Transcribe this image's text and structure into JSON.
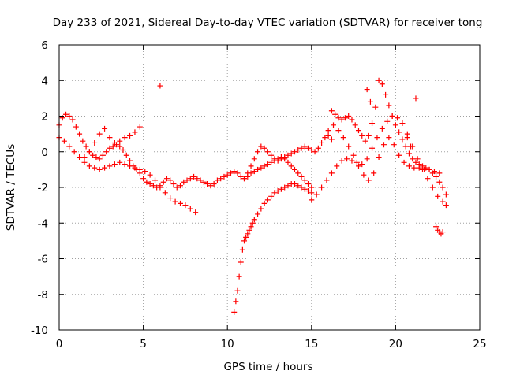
{
  "chart_data": {
    "type": "scatter",
    "title": "Day 233 of 2021, Sidereal Day-to-day VTEC variation (SDTVAR) for receiver tong",
    "xlabel": "GPS time / hours",
    "ylabel": "SDTVAR / TECUs",
    "xlim": [
      0,
      25
    ],
    "ylim": [
      -10,
      6
    ],
    "xticks": [
      0,
      5,
      10,
      15,
      20,
      25
    ],
    "yticks": [
      -10,
      -8,
      -6,
      -4,
      -2,
      0,
      2,
      4,
      6
    ],
    "xtick_labels": [
      "0",
      "5",
      "10",
      "15",
      "20",
      "25"
    ],
    "ytick_labels": [
      "-10",
      "-8",
      "-6",
      "-4",
      "-2",
      "0",
      "2",
      "4",
      "6"
    ],
    "grid": true,
    "marker": "plus",
    "color": "#ff0000",
    "series": [
      {
        "name": "s1",
        "x": [
          0.0,
          0.2,
          0.4,
          0.6,
          0.8,
          1.0,
          1.2,
          1.4,
          1.6,
          1.8,
          2.0,
          2.2,
          2.4,
          2.6,
          2.8,
          3.0,
          3.2,
          3.4,
          3.6,
          3.8,
          4.0,
          4.2,
          4.4,
          4.6,
          4.8,
          5.0,
          5.2,
          5.4,
          5.6,
          5.8,
          6.0,
          6.2,
          6.4,
          6.6,
          6.8,
          7.0,
          7.2,
          7.4,
          7.6,
          7.8,
          8.0,
          8.2,
          8.4,
          8.6,
          8.8,
          9.0,
          9.2,
          9.4,
          9.6,
          9.8,
          10.0,
          10.2,
          10.4,
          10.6,
          10.8,
          11.0,
          11.2,
          11.4,
          11.6,
          11.8,
          12.0,
          12.2,
          12.4,
          12.6,
          12.8,
          13.0,
          13.2,
          13.4,
          13.6,
          13.8,
          14.0,
          14.2,
          14.4,
          14.6,
          14.8,
          15.0
        ],
        "y": [
          1.5,
          1.9,
          2.1,
          2.0,
          1.8,
          1.4,
          1.0,
          0.6,
          0.3,
          0.0,
          -0.2,
          -0.3,
          -0.4,
          -0.2,
          0.0,
          0.2,
          0.3,
          0.4,
          0.3,
          0.1,
          -0.2,
          -0.5,
          -0.8,
          -1.0,
          -1.2,
          -1.5,
          -1.7,
          -1.8,
          -1.9,
          -2.0,
          -1.9,
          -1.7,
          -1.5,
          -1.6,
          -1.8,
          -2.0,
          -1.9,
          -1.7,
          -1.6,
          -1.5,
          -1.4,
          -1.5,
          -1.6,
          -1.7,
          -1.8,
          -1.9,
          -1.8,
          -1.6,
          -1.5,
          -1.4,
          -1.3,
          -1.2,
          -1.1,
          -1.2,
          -1.4,
          -1.5,
          -1.4,
          -1.2,
          -1.1,
          -1.0,
          -0.9,
          -0.8,
          -0.7,
          -0.6,
          -0.5,
          -0.4,
          -0.3,
          -0.4,
          -0.6,
          -0.8,
          -1.0,
          -1.2,
          -1.4,
          -1.6,
          -1.8,
          -2.0
        ]
      },
      {
        "name": "s2",
        "x": [
          0.0,
          0.3,
          0.6,
          0.9,
          1.2,
          1.5,
          1.8,
          2.1,
          2.4,
          2.7,
          3.0,
          3.3,
          3.6,
          3.9,
          4.2,
          4.5,
          4.8,
          5.1,
          5.4,
          5.7,
          6.0,
          6.3,
          6.6,
          6.9,
          7.2,
          7.5,
          7.8,
          8.1
        ],
        "y": [
          0.8,
          0.6,
          0.3,
          0.0,
          -0.3,
          -0.6,
          -0.8,
          -0.9,
          -1.0,
          -0.9,
          -0.8,
          -0.7,
          -0.6,
          -0.7,
          -0.8,
          -0.9,
          -1.0,
          -1.1,
          -1.3,
          -1.6,
          -2.0,
          -2.3,
          -2.6,
          -2.8,
          -2.9,
          -3.0,
          -3.2,
          -3.4
        ]
      },
      {
        "name": "s3",
        "x": [
          1.5,
          1.8,
          2.1,
          2.4,
          2.7,
          3.0,
          3.3,
          3.6,
          3.9,
          4.2,
          4.5,
          4.8
        ],
        "y": [
          -0.3,
          0.0,
          0.5,
          1.0,
          1.3,
          0.8,
          0.5,
          0.6,
          0.8,
          0.9,
          1.1,
          1.4
        ]
      },
      {
        "name": "s4",
        "x": [
          6.0
        ],
        "y": [
          3.7
        ]
      },
      {
        "name": "s5",
        "x": [
          10.4,
          10.5,
          10.6,
          10.7,
          10.8,
          10.9,
          11.0,
          11.1,
          11.2,
          11.3,
          11.4,
          11.5,
          11.6,
          11.8,
          12.0,
          12.2,
          12.4,
          12.6,
          12.8,
          13.0,
          13.2,
          13.4,
          13.6,
          13.8,
          14.0,
          14.2,
          14.4,
          14.6,
          14.8,
          15.0
        ],
        "y": [
          -9.0,
          -8.4,
          -7.8,
          -7.0,
          -6.2,
          -5.5,
          -5.0,
          -4.8,
          -4.6,
          -4.4,
          -4.2,
          -4.0,
          -3.8,
          -3.5,
          -3.2,
          -2.9,
          -2.7,
          -2.5,
          -2.3,
          -2.2,
          -2.1,
          -2.0,
          -1.9,
          -1.8,
          -1.8,
          -1.9,
          -2.0,
          -2.1,
          -2.2,
          -2.3
        ]
      },
      {
        "name": "s6",
        "x": [
          11.0,
          11.2,
          11.4,
          11.6,
          11.8,
          12.0,
          12.2,
          12.4,
          12.6,
          12.8,
          13.0,
          13.2,
          13.4,
          13.6,
          13.8,
          14.0,
          14.2,
          14.4,
          14.6,
          14.8,
          15.0,
          15.2,
          15.4,
          15.6,
          15.8,
          16.0,
          16.2
        ],
        "y": [
          -1.5,
          -1.2,
          -0.8,
          -0.4,
          0.0,
          0.3,
          0.2,
          0.0,
          -0.2,
          -0.4,
          -0.5,
          -0.4,
          -0.3,
          -0.2,
          -0.1,
          0.0,
          0.1,
          0.2,
          0.3,
          0.2,
          0.1,
          0.0,
          0.2,
          0.5,
          0.8,
          0.9,
          0.7
        ]
      },
      {
        "name": "s7",
        "x": [
          15.0,
          15.3,
          15.6,
          15.9,
          16.2,
          16.5,
          16.8,
          17.1,
          17.4,
          17.7,
          18.0,
          18.3,
          18.6,
          18.9,
          19.2,
          19.5,
          19.8,
          20.1,
          20.4,
          20.7,
          21.0,
          21.3,
          21.6,
          21.9,
          22.2,
          22.5,
          22.8,
          23.0
        ],
        "y": [
          -2.7,
          -2.4,
          -2.0,
          -1.6,
          -1.2,
          -0.8,
          -0.5,
          -0.4,
          -0.5,
          -0.6,
          -0.7,
          -0.4,
          0.2,
          0.8,
          1.3,
          1.7,
          2.0,
          1.9,
          1.6,
          1.0,
          0.3,
          -0.4,
          -1.0,
          -1.5,
          -2.0,
          -2.5,
          -2.8,
          -3.0
        ]
      },
      {
        "name": "s8",
        "x": [
          16.2,
          16.4,
          16.6,
          16.8,
          17.0,
          17.2,
          17.4,
          17.6,
          17.8,
          18.0,
          18.2,
          18.4,
          18.6,
          18.8,
          19.0,
          19.2,
          19.4,
          19.6,
          19.8,
          20.0,
          20.2,
          20.4,
          20.6,
          20.8,
          21.0,
          21.2,
          21.4,
          21.6,
          21.8,
          22.0,
          22.2,
          22.4,
          22.6,
          22.8,
          23.0
        ],
        "y": [
          2.3,
          2.1,
          1.9,
          1.8,
          1.9,
          2.0,
          1.8,
          1.5,
          1.2,
          0.9,
          0.6,
          0.9,
          1.6,
          2.5,
          4.0,
          3.8,
          3.2,
          2.6,
          2.0,
          1.5,
          1.1,
          0.7,
          0.3,
          -0.1,
          -0.4,
          -0.6,
          -0.7,
          -0.8,
          -0.9,
          -1.0,
          -1.2,
          -1.4,
          -1.7,
          -2.0,
          -2.4
        ]
      },
      {
        "name": "s9",
        "x": [
          16.0,
          16.3,
          16.6,
          16.9,
          17.2,
          17.5,
          17.8,
          18.1,
          18.4,
          18.7,
          19.0,
          19.3,
          19.6,
          19.9,
          20.2,
          20.5,
          20.8,
          21.1,
          21.4,
          21.7,
          22.0,
          22.3,
          22.6
        ],
        "y": [
          1.2,
          1.5,
          1.2,
          0.8,
          0.3,
          -0.2,
          -0.8,
          -1.3,
          -1.6,
          -1.2,
          -0.3,
          0.4,
          0.8,
          0.4,
          -0.2,
          -0.6,
          -0.8,
          -0.9,
          -0.9,
          -1.0,
          -1.0,
          -1.1,
          -1.2
        ]
      },
      {
        "name": "s10",
        "x": [
          18.3,
          18.5,
          20.7,
          20.9,
          21.2
        ],
        "y": [
          3.5,
          2.8,
          0.8,
          0.3,
          3.0
        ]
      },
      {
        "name": "s11",
        "x": [
          22.4,
          22.5,
          22.6,
          22.7,
          22.8
        ],
        "y": [
          -4.2,
          -4.4,
          -4.5,
          -4.6,
          -4.5
        ]
      }
    ]
  }
}
